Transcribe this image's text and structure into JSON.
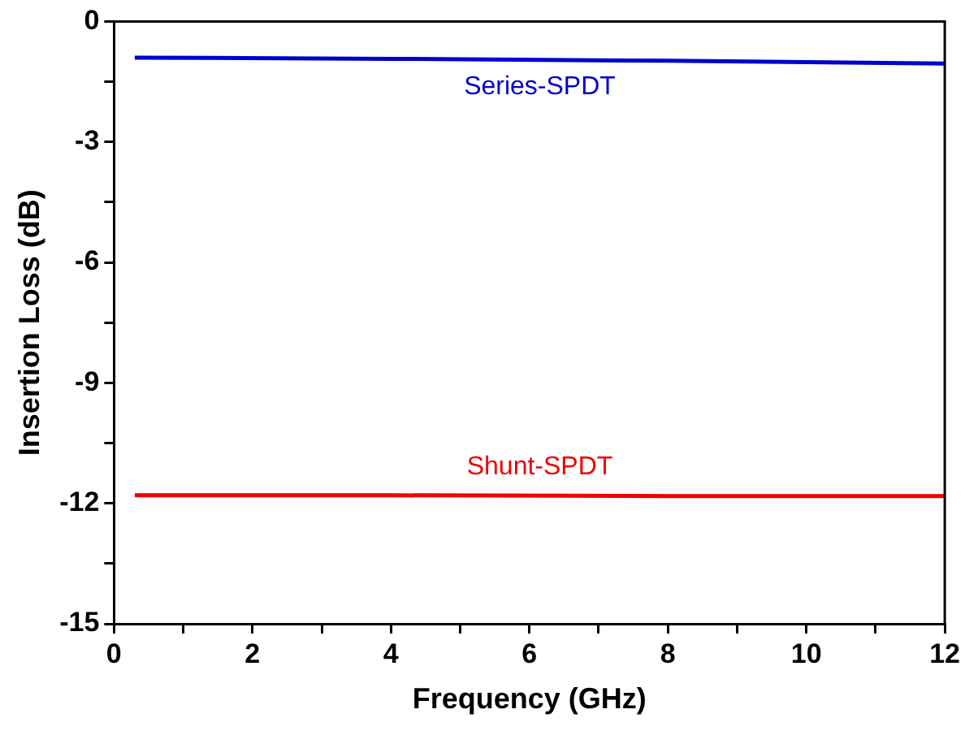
{
  "chart_data": {
    "type": "line",
    "xlabel": "Frequency (GHz)",
    "ylabel": "Insertion Loss (dB)",
    "xlim": [
      0,
      12
    ],
    "xticks": [
      0,
      {
        "value": 1,
        "label": null
      },
      2,
      {
        "value": 3,
        "label": null
      },
      4,
      {
        "value": 5,
        "label": null
      },
      6,
      {
        "value": 7,
        "label": null
      },
      8,
      {
        "value": 9,
        "label": null
      },
      10,
      {
        "value": 11,
        "label": null
      },
      12
    ],
    "ylim": [
      -15,
      0
    ],
    "yticks": [
      -15,
      {
        "value": -13.5,
        "label": null
      },
      -12,
      {
        "value": -10.5,
        "label": null
      },
      -9,
      {
        "value": -7.5,
        "label": null
      },
      -6,
      {
        "value": -4.5,
        "label": null
      },
      -3,
      {
        "value": -1.5,
        "label": null
      },
      0
    ],
    "grid": false,
    "legend": false,
    "marker": "none",
    "line_style": "solid",
    "series": [
      {
        "name": "Series-SPDT",
        "color": "#0000cc",
        "x": [
          0.3,
          4,
          8,
          12
        ],
        "values": [
          -0.9,
          -0.93,
          -0.98,
          -1.05
        ]
      },
      {
        "name": "Shunt-SPDT",
        "color": "#ee0000",
        "x": [
          0.3,
          4,
          8,
          12
        ],
        "values": [
          -11.8,
          -11.8,
          -11.82,
          -11.82
        ]
      }
    ]
  }
}
